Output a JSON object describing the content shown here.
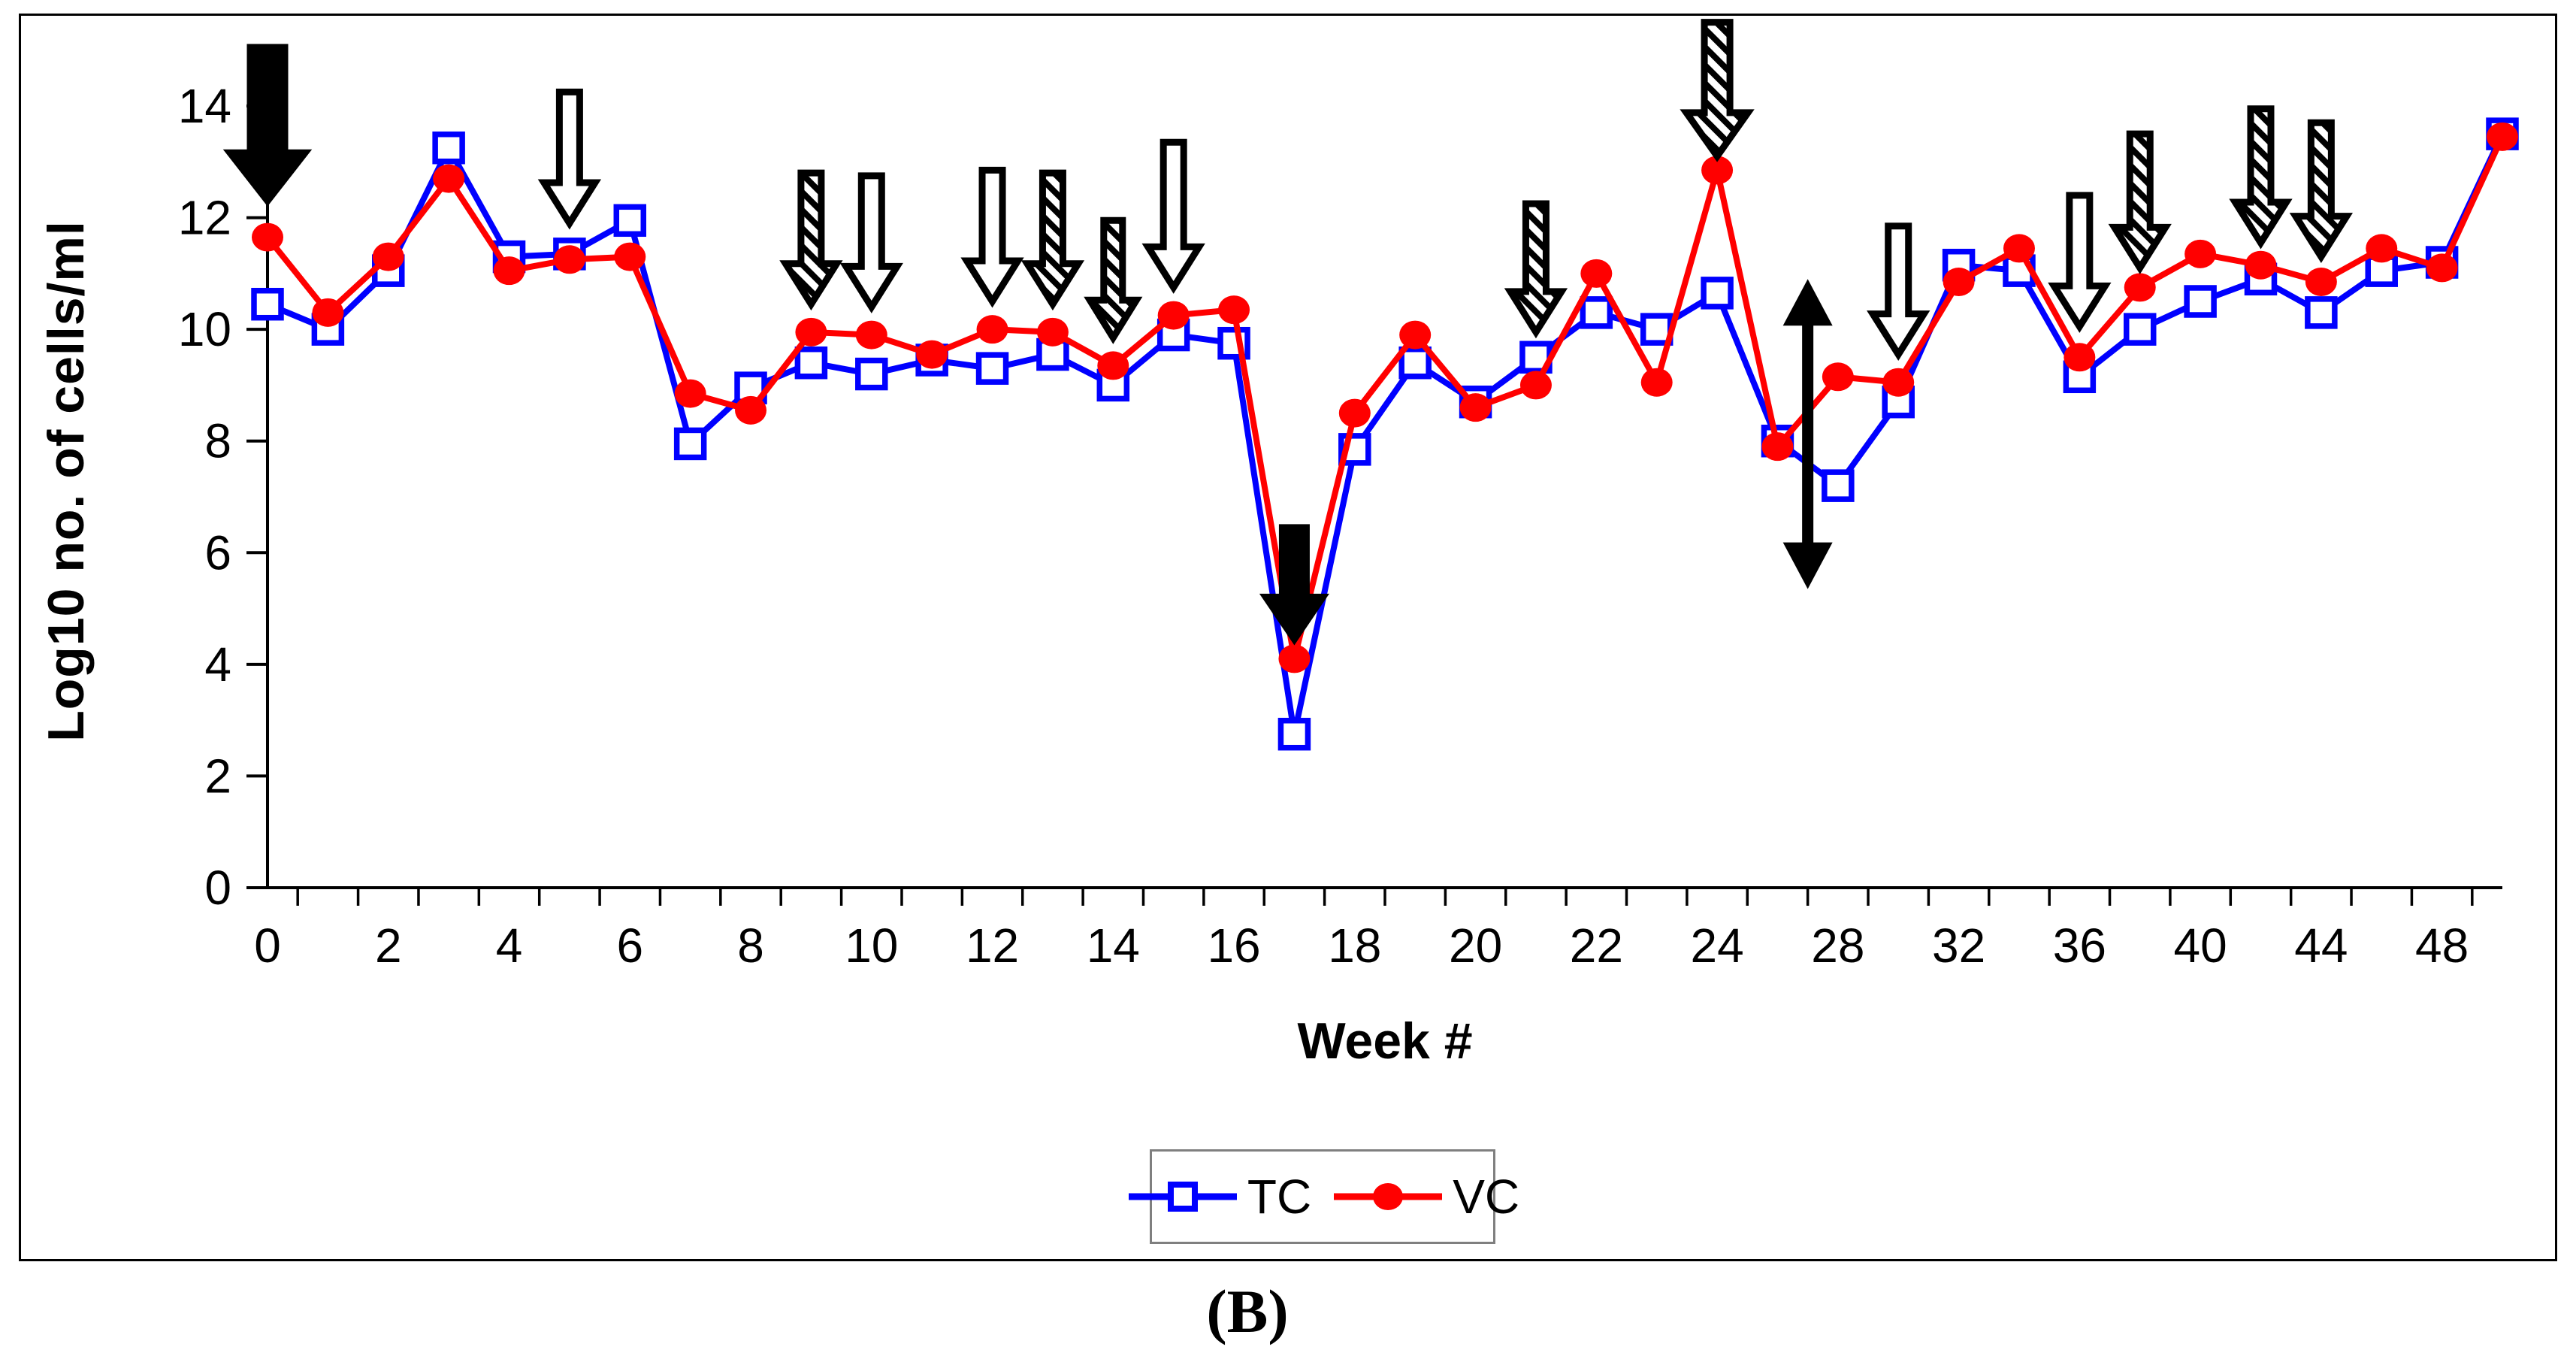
{
  "figure": {
    "caption": "(B)",
    "background": "#ffffff",
    "border_color": "#000000"
  },
  "axes": {
    "y_title": "Log10 no. of cells/ml",
    "x_title": "Week #",
    "y_tick_labels": [
      "0",
      "2",
      "4",
      "6",
      "8",
      "10",
      "12",
      "14"
    ],
    "x_tick_labels": [
      "0",
      "2",
      "4",
      "6",
      "8",
      "10",
      "12",
      "14",
      "16",
      "18",
      "20",
      "22",
      "24",
      "28",
      "32",
      "36",
      "40",
      "44",
      "48"
    ]
  },
  "chart_data": {
    "type": "line",
    "title": "",
    "xlabel": "Week #",
    "ylabel": "Log10 no. of cells/ml",
    "ylim": [
      0,
      14
    ],
    "y_ticks": [
      0,
      2,
      4,
      6,
      8,
      10,
      12,
      14
    ],
    "grid": false,
    "legend_position": "bottom",
    "weeks": [
      0,
      1,
      2,
      3,
      4,
      5,
      6,
      7,
      8,
      9,
      10,
      11,
      12,
      13,
      14,
      15,
      16,
      17,
      18,
      19,
      20,
      21,
      22,
      23,
      24,
      26,
      28,
      30,
      32,
      34,
      36,
      38,
      40,
      42,
      44,
      46,
      48,
      50
    ],
    "x_labeled_weeks": [
      0,
      2,
      4,
      6,
      8,
      10,
      12,
      14,
      16,
      18,
      20,
      22,
      24,
      28,
      32,
      36,
      40,
      44,
      48
    ],
    "series": [
      {
        "name": "TC",
        "color": "#0000ff",
        "marker": "open-square",
        "values": [
          10.45,
          10.0,
          11.05,
          13.25,
          11.3,
          11.35,
          11.95,
          7.95,
          8.95,
          9.4,
          9.2,
          9.45,
          9.3,
          9.55,
          9.0,
          9.9,
          9.75,
          2.75,
          7.85,
          9.4,
          8.7,
          9.5,
          10.3,
          10.0,
          10.65,
          8.0,
          7.2,
          8.7,
          11.15,
          11.05,
          9.15,
          10.0,
          10.5,
          10.9,
          10.3,
          11.05,
          11.2,
          13.5
        ]
      },
      {
        "name": "VC",
        "color": "#ff0000",
        "marker": "filled-circle",
        "values": [
          11.65,
          10.3,
          11.3,
          12.7,
          11.05,
          11.25,
          11.3,
          8.85,
          8.55,
          9.95,
          9.9,
          9.55,
          10.0,
          9.95,
          9.35,
          10.25,
          10.35,
          4.1,
          8.5,
          9.9,
          8.6,
          9.0,
          11.0,
          9.05,
          12.85,
          7.9,
          9.15,
          9.05,
          10.85,
          11.45,
          9.5,
          10.75,
          11.35,
          11.15,
          10.85,
          11.45,
          11.1,
          13.45
        ]
      }
    ],
    "annotations": {
      "arrows": [
        {
          "week": 0,
          "style": "solid",
          "tip_value": 12.3,
          "top_value": 15.05,
          "size": "large"
        },
        {
          "week": 5,
          "style": "open",
          "tip_value": 11.9,
          "top_value": 14.25,
          "size": "normal"
        },
        {
          "week": 9,
          "style": "hatched",
          "tip_value": 10.45,
          "top_value": 12.8,
          "size": "normal"
        },
        {
          "week": 10,
          "style": "open",
          "tip_value": 10.4,
          "top_value": 12.75,
          "size": "normal"
        },
        {
          "week": 12,
          "style": "open",
          "tip_value": 10.5,
          "top_value": 12.85,
          "size": "normal"
        },
        {
          "week": 13,
          "style": "hatched",
          "tip_value": 10.45,
          "top_value": 12.8,
          "size": "normal"
        },
        {
          "week": 14,
          "style": "hatched",
          "tip_value": 9.85,
          "top_value": 11.95,
          "size": "small"
        },
        {
          "week": 15,
          "style": "open",
          "tip_value": 10.75,
          "top_value": 13.35,
          "size": "normal"
        },
        {
          "week": 17,
          "style": "solid",
          "tip_value": 4.45,
          "top_value": 6.45,
          "size": "medium"
        },
        {
          "week": 21,
          "style": "hatched",
          "tip_value": 9.95,
          "top_value": 12.25,
          "size": "normal"
        },
        {
          "week": 24,
          "style": "hatched",
          "tip_value": 13.1,
          "top_value": 15.5,
          "size": "big"
        },
        {
          "week": 30,
          "style": "open",
          "tip_value": 9.55,
          "top_value": 11.85,
          "size": "normal"
        },
        {
          "week": 36,
          "style": "open",
          "tip_value": 10.05,
          "top_value": 12.4,
          "size": "normal"
        },
        {
          "week": 38,
          "style": "hatched",
          "tip_value": 11.1,
          "top_value": 13.5,
          "size": "normal"
        },
        {
          "week": 42,
          "style": "hatched",
          "tip_value": 11.55,
          "top_value": 13.95,
          "size": "normal"
        },
        {
          "week": 44,
          "style": "hatched",
          "tip_value": 11.3,
          "top_value": 13.7,
          "size": "normal"
        }
      ],
      "double_arrow": {
        "week_position": 27,
        "low_value": 5.35,
        "high_value": 10.9
      }
    }
  },
  "legend": {
    "entries": [
      {
        "label": "TC",
        "color": "#0000ff",
        "marker": "open-square"
      },
      {
        "label": "VC",
        "color": "#ff0000",
        "marker": "filled-circle"
      }
    ]
  }
}
